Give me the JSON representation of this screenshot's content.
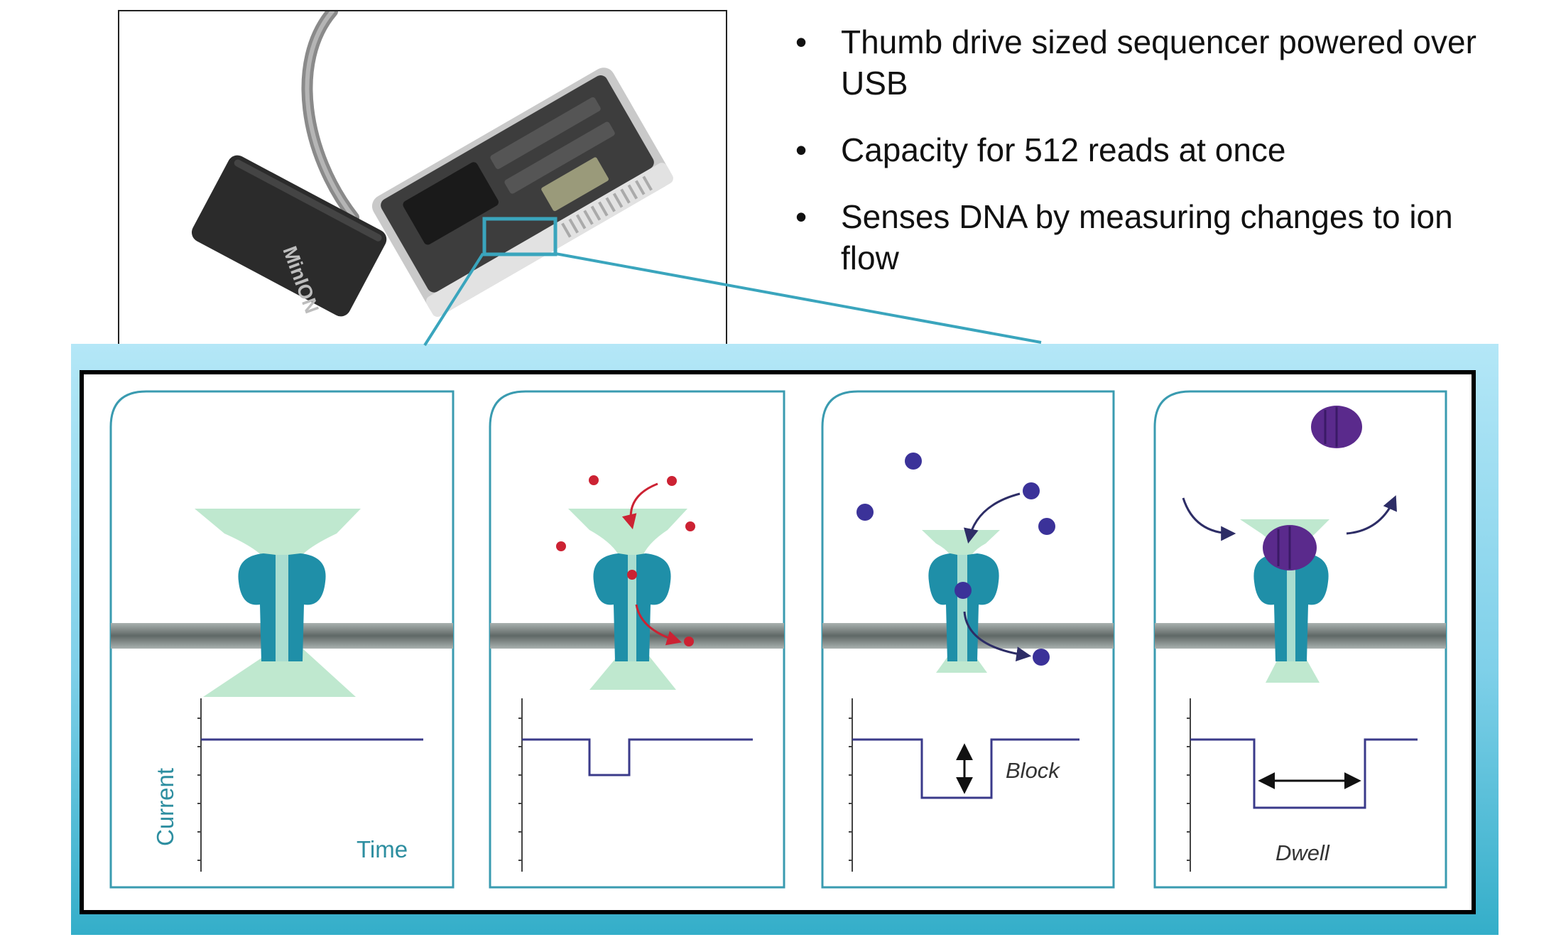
{
  "device": {
    "brand_text": "MinION"
  },
  "bullets": [
    "Thumb drive sized sequencer powered over USB",
    "Capacity for 512 reads at once",
    "Senses DNA by measuring changes to ion flow"
  ],
  "panels": {
    "axis_y_label": "Current",
    "axis_x_label": "Time",
    "block_label": "Block",
    "dwell_label": "Dwell"
  },
  "colors": {
    "pore": "#1f8fa8",
    "funnel": "#bfe8cf",
    "membrane": "#6a7472",
    "ion": "#cc2233",
    "molecule": "#3b3299",
    "analyte": "#5a2a8c",
    "panel_border": "#3a9bb0",
    "trace": "#3a3a8a",
    "zoom_line": "#3aa5bd"
  }
}
